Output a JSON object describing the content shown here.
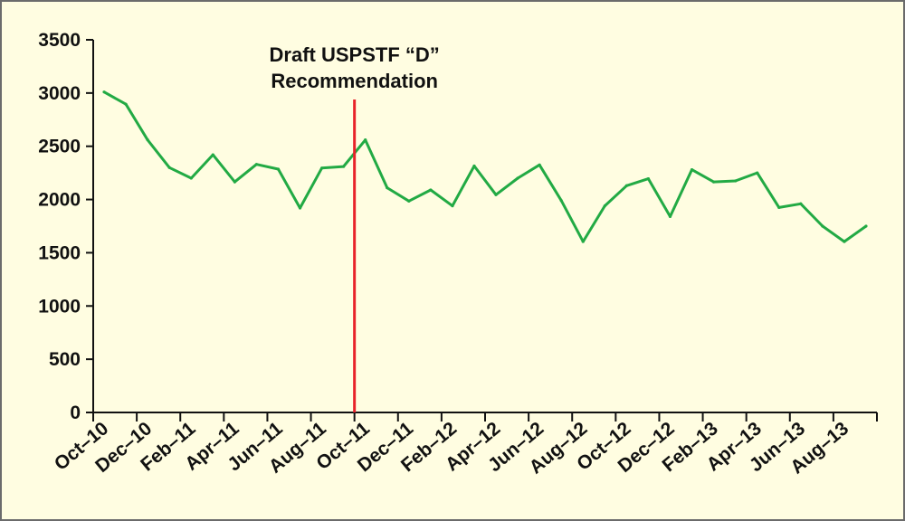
{
  "chart_data": {
    "type": "line",
    "title": "",
    "xlabel": "",
    "ylabel": "",
    "ylim": [
      0,
      3500
    ],
    "yticks": [
      0,
      500,
      1000,
      1500,
      2000,
      2500,
      3000,
      3500
    ],
    "grid": false,
    "legend": "none",
    "line_color": "#22aa44",
    "marker_color": "#e8232a",
    "background_color": "#fffde1",
    "x_tick_labels": [
      "Oct–10",
      "Dec–10",
      "Feb–11",
      "Apr–11",
      "Jun–11",
      "Aug–11",
      "Oct–11",
      "Dec–11",
      "Feb–12",
      "Apr–12",
      "Jun–12",
      "Aug–12",
      "Oct–12",
      "Dec–12",
      "Feb–13",
      "Apr–13",
      "Jun–13",
      "Aug–13"
    ],
    "x": [
      "Oct–10",
      "Nov–10",
      "Dec–10",
      "Jan–11",
      "Feb–11",
      "Mar–11",
      "Apr–11",
      "May–11",
      "Jun–11",
      "Jul–11",
      "Aug–11",
      "Sep–11",
      "Oct–11",
      "Nov–11",
      "Dec–11",
      "Jan–12",
      "Feb–12",
      "Mar–12",
      "Apr–12",
      "May–12",
      "Jun–12",
      "Jul–12",
      "Aug–12",
      "Sep–12",
      "Oct–12",
      "Nov–12",
      "Dec–12",
      "Jan–13",
      "Feb–13",
      "Mar–13",
      "Apr–13",
      "May–13",
      "Jun–13",
      "Jul–13",
      "Aug–13",
      "Sep–13"
    ],
    "series": [
      {
        "values": [
          3010,
          2895,
          2560,
          2300,
          2200,
          2420,
          2165,
          2330,
          2285,
          1920,
          2295,
          2310,
          2560,
          2110,
          1985,
          2090,
          1940,
          2315,
          2045,
          2200,
          2325,
          1990,
          1605,
          1940,
          2130,
          2195,
          1840,
          2280,
          2165,
          2175,
          2250,
          1925,
          1960,
          1750,
          1605,
          1750
        ]
      }
    ],
    "annotation": {
      "x": "Oct–11",
      "line1": "Draft USPSTF “D”",
      "line2": "Recommendation"
    }
  }
}
